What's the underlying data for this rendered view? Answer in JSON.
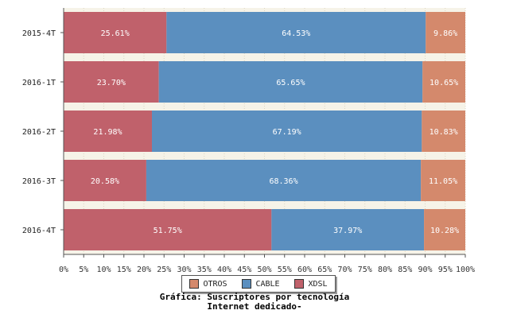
{
  "chart_data": {
    "type": "bar",
    "orientation": "horizontal",
    "stacked": true,
    "categories": [
      "2015-4T",
      "2016-1T",
      "2016-2T",
      "2016-3T",
      "2016-4T"
    ],
    "series": [
      {
        "name": "XDSL",
        "values": [
          25.61,
          23.7,
          21.98,
          20.58,
          51.75
        ],
        "labels": [
          "25.61%",
          "23.70%",
          "21.98%",
          "20.58%",
          "51.75%"
        ],
        "color": "#c0616b"
      },
      {
        "name": "CABLE",
        "values": [
          64.53,
          65.65,
          67.19,
          68.36,
          37.97
        ],
        "labels": [
          "64.53%",
          "65.65%",
          "67.19%",
          "68.36%",
          "37.97%"
        ],
        "color": "#5b8fbf"
      },
      {
        "name": "OTROS",
        "values": [
          9.86,
          10.65,
          10.83,
          11.05,
          10.28
        ],
        "labels": [
          "9.86%",
          "10.65%",
          "10.83%",
          "11.05%",
          "10.28%"
        ],
        "color": "#d4896c"
      }
    ],
    "xlim": [
      0,
      100
    ],
    "xticks": [
      "0%",
      "5%",
      "10%",
      "15%",
      "20%",
      "25%",
      "30%",
      "35%",
      "40%",
      "45%",
      "50%",
      "55%",
      "60%",
      "65%",
      "70%",
      "75%",
      "80%",
      "85%",
      "90%",
      "95%",
      "100%"
    ],
    "legend": [
      "OTROS",
      "CABLE",
      "XDSL"
    ],
    "legend_position": "bottom",
    "title_lines": [
      "Gráfica: Suscriptores por tecnología",
      "Internet dedicado-"
    ]
  }
}
